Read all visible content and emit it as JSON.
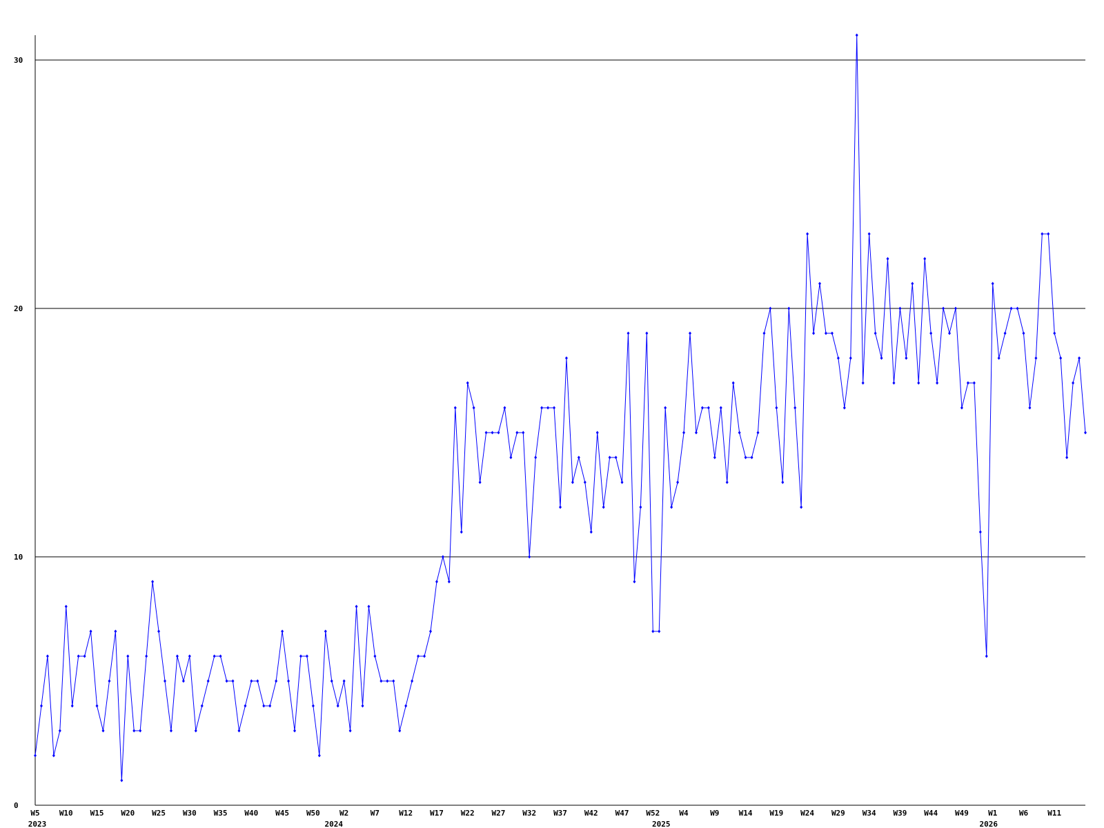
{
  "chart_data": {
    "type": "line",
    "categories": [
      "W5",
      null,
      null,
      null,
      null,
      "W10",
      null,
      null,
      null,
      null,
      "W15",
      null,
      null,
      null,
      null,
      "W20",
      null,
      null,
      null,
      null,
      "W25",
      null,
      null,
      null,
      null,
      "W30",
      null,
      null,
      null,
      null,
      "W35",
      null,
      null,
      null,
      null,
      "W40",
      null,
      null,
      null,
      null,
      "W45",
      null,
      null,
      null,
      null,
      "W50",
      null,
      null,
      null,
      null,
      "W2",
      null,
      null,
      null,
      null,
      "W7",
      null,
      null,
      null,
      null,
      "W12",
      null,
      null,
      null,
      null,
      "W17",
      null,
      null,
      null,
      null,
      "W22",
      null,
      null,
      null,
      null,
      "W27",
      null,
      null,
      null,
      null,
      "W32",
      null,
      null,
      null,
      null,
      "W37",
      null,
      null,
      null,
      null,
      "W42",
      null,
      null,
      null,
      null,
      "W47",
      null,
      null,
      null,
      null,
      "W52",
      null,
      null,
      null,
      null,
      "W4",
      null,
      null,
      null,
      null,
      "W9",
      null,
      null,
      null,
      null,
      "W14",
      null,
      null,
      null,
      null,
      "W19",
      null,
      null,
      null,
      null,
      "W24",
      null,
      null,
      null,
      null,
      "W29",
      null,
      null,
      null,
      null,
      "W34",
      null,
      null,
      null,
      null,
      "W39",
      null,
      null,
      null,
      null,
      "W44",
      null,
      null,
      null,
      null,
      "W49",
      null,
      null,
      null,
      null,
      "W1",
      null,
      null,
      null,
      null,
      "W6",
      null,
      null,
      null,
      null,
      "W11",
      null,
      null,
      null,
      null,
      null
    ],
    "x_sublabels": [
      "2023",
      null,
      null,
      null,
      null,
      null,
      null,
      null,
      null,
      null,
      null,
      null,
      null,
      null,
      null,
      null,
      null,
      null,
      null,
      null,
      null,
      null,
      null,
      null,
      null,
      null,
      null,
      null,
      null,
      null,
      null,
      null,
      null,
      null,
      null,
      null,
      null,
      null,
      null,
      null,
      null,
      null,
      null,
      null,
      null,
      null,
      null,
      null,
      "2024",
      null,
      null,
      null,
      null,
      null,
      null,
      null,
      null,
      null,
      null,
      null,
      null,
      null,
      null,
      null,
      null,
      null,
      null,
      null,
      null,
      null,
      null,
      null,
      null,
      null,
      null,
      null,
      null,
      null,
      null,
      null,
      null,
      null,
      null,
      null,
      null,
      null,
      null,
      null,
      null,
      null,
      null,
      null,
      null,
      null,
      null,
      null,
      null,
      null,
      null,
      null,
      null,
      "2025",
      null,
      null,
      null,
      null,
      null,
      null,
      null,
      null,
      null,
      null,
      null,
      null,
      null,
      null,
      null,
      null,
      null,
      null,
      null,
      null,
      null,
      null,
      null,
      null,
      null,
      null,
      null,
      null,
      null,
      null,
      null,
      null,
      null,
      null,
      null,
      null,
      null,
      null,
      null,
      null,
      null,
      null,
      null,
      null,
      null,
      null,
      null,
      null,
      null,
      null,
      null,
      null,
      "2026",
      null,
      null,
      null,
      null,
      null,
      null,
      null,
      null,
      null,
      null,
      null,
      null,
      null,
      null,
      null,
      null
    ],
    "series": [
      {
        "color": "#0000ff",
        "values": [
          2,
          4,
          6,
          2,
          3,
          8,
          4,
          6,
          6,
          7,
          4,
          3,
          5,
          7,
          1,
          6,
          3,
          3,
          6,
          9,
          7,
          5,
          3,
          6,
          5,
          6,
          3,
          4,
          5,
          6,
          6,
          5,
          5,
          3,
          4,
          5,
          5,
          4,
          4,
          5,
          7,
          5,
          3,
          6,
          6,
          4,
          2,
          7,
          5,
          4,
          5,
          3,
          8,
          4,
          8,
          6,
          5,
          5,
          5,
          3,
          4,
          5,
          6,
          6,
          7,
          9,
          10,
          9,
          16,
          11,
          17,
          16,
          13,
          15,
          15,
          15,
          16,
          14,
          15,
          15,
          10,
          14,
          16,
          16,
          16,
          12,
          18,
          13,
          14,
          13,
          11,
          15,
          12,
          14,
          14,
          13,
          19,
          9,
          12,
          19,
          7,
          7,
          16,
          12,
          13,
          15,
          19,
          15,
          16,
          16,
          14,
          16,
          13,
          17,
          15,
          14,
          14,
          15,
          19,
          20,
          16,
          13,
          20,
          16,
          12,
          23,
          19,
          21,
          19,
          19,
          18,
          16,
          18,
          31,
          17,
          23,
          19,
          18,
          22,
          17,
          20,
          18,
          21,
          17,
          22,
          19,
          17,
          20,
          19,
          20,
          16,
          17,
          17,
          11,
          6,
          21,
          18,
          19,
          20,
          20,
          19,
          16,
          18,
          23,
          23,
          19,
          18,
          14,
          17,
          18,
          15
        ]
      }
    ],
    "ylim": [
      0,
      31
    ],
    "yticks": [
      0,
      10,
      20,
      30
    ],
    "grid": true
  }
}
